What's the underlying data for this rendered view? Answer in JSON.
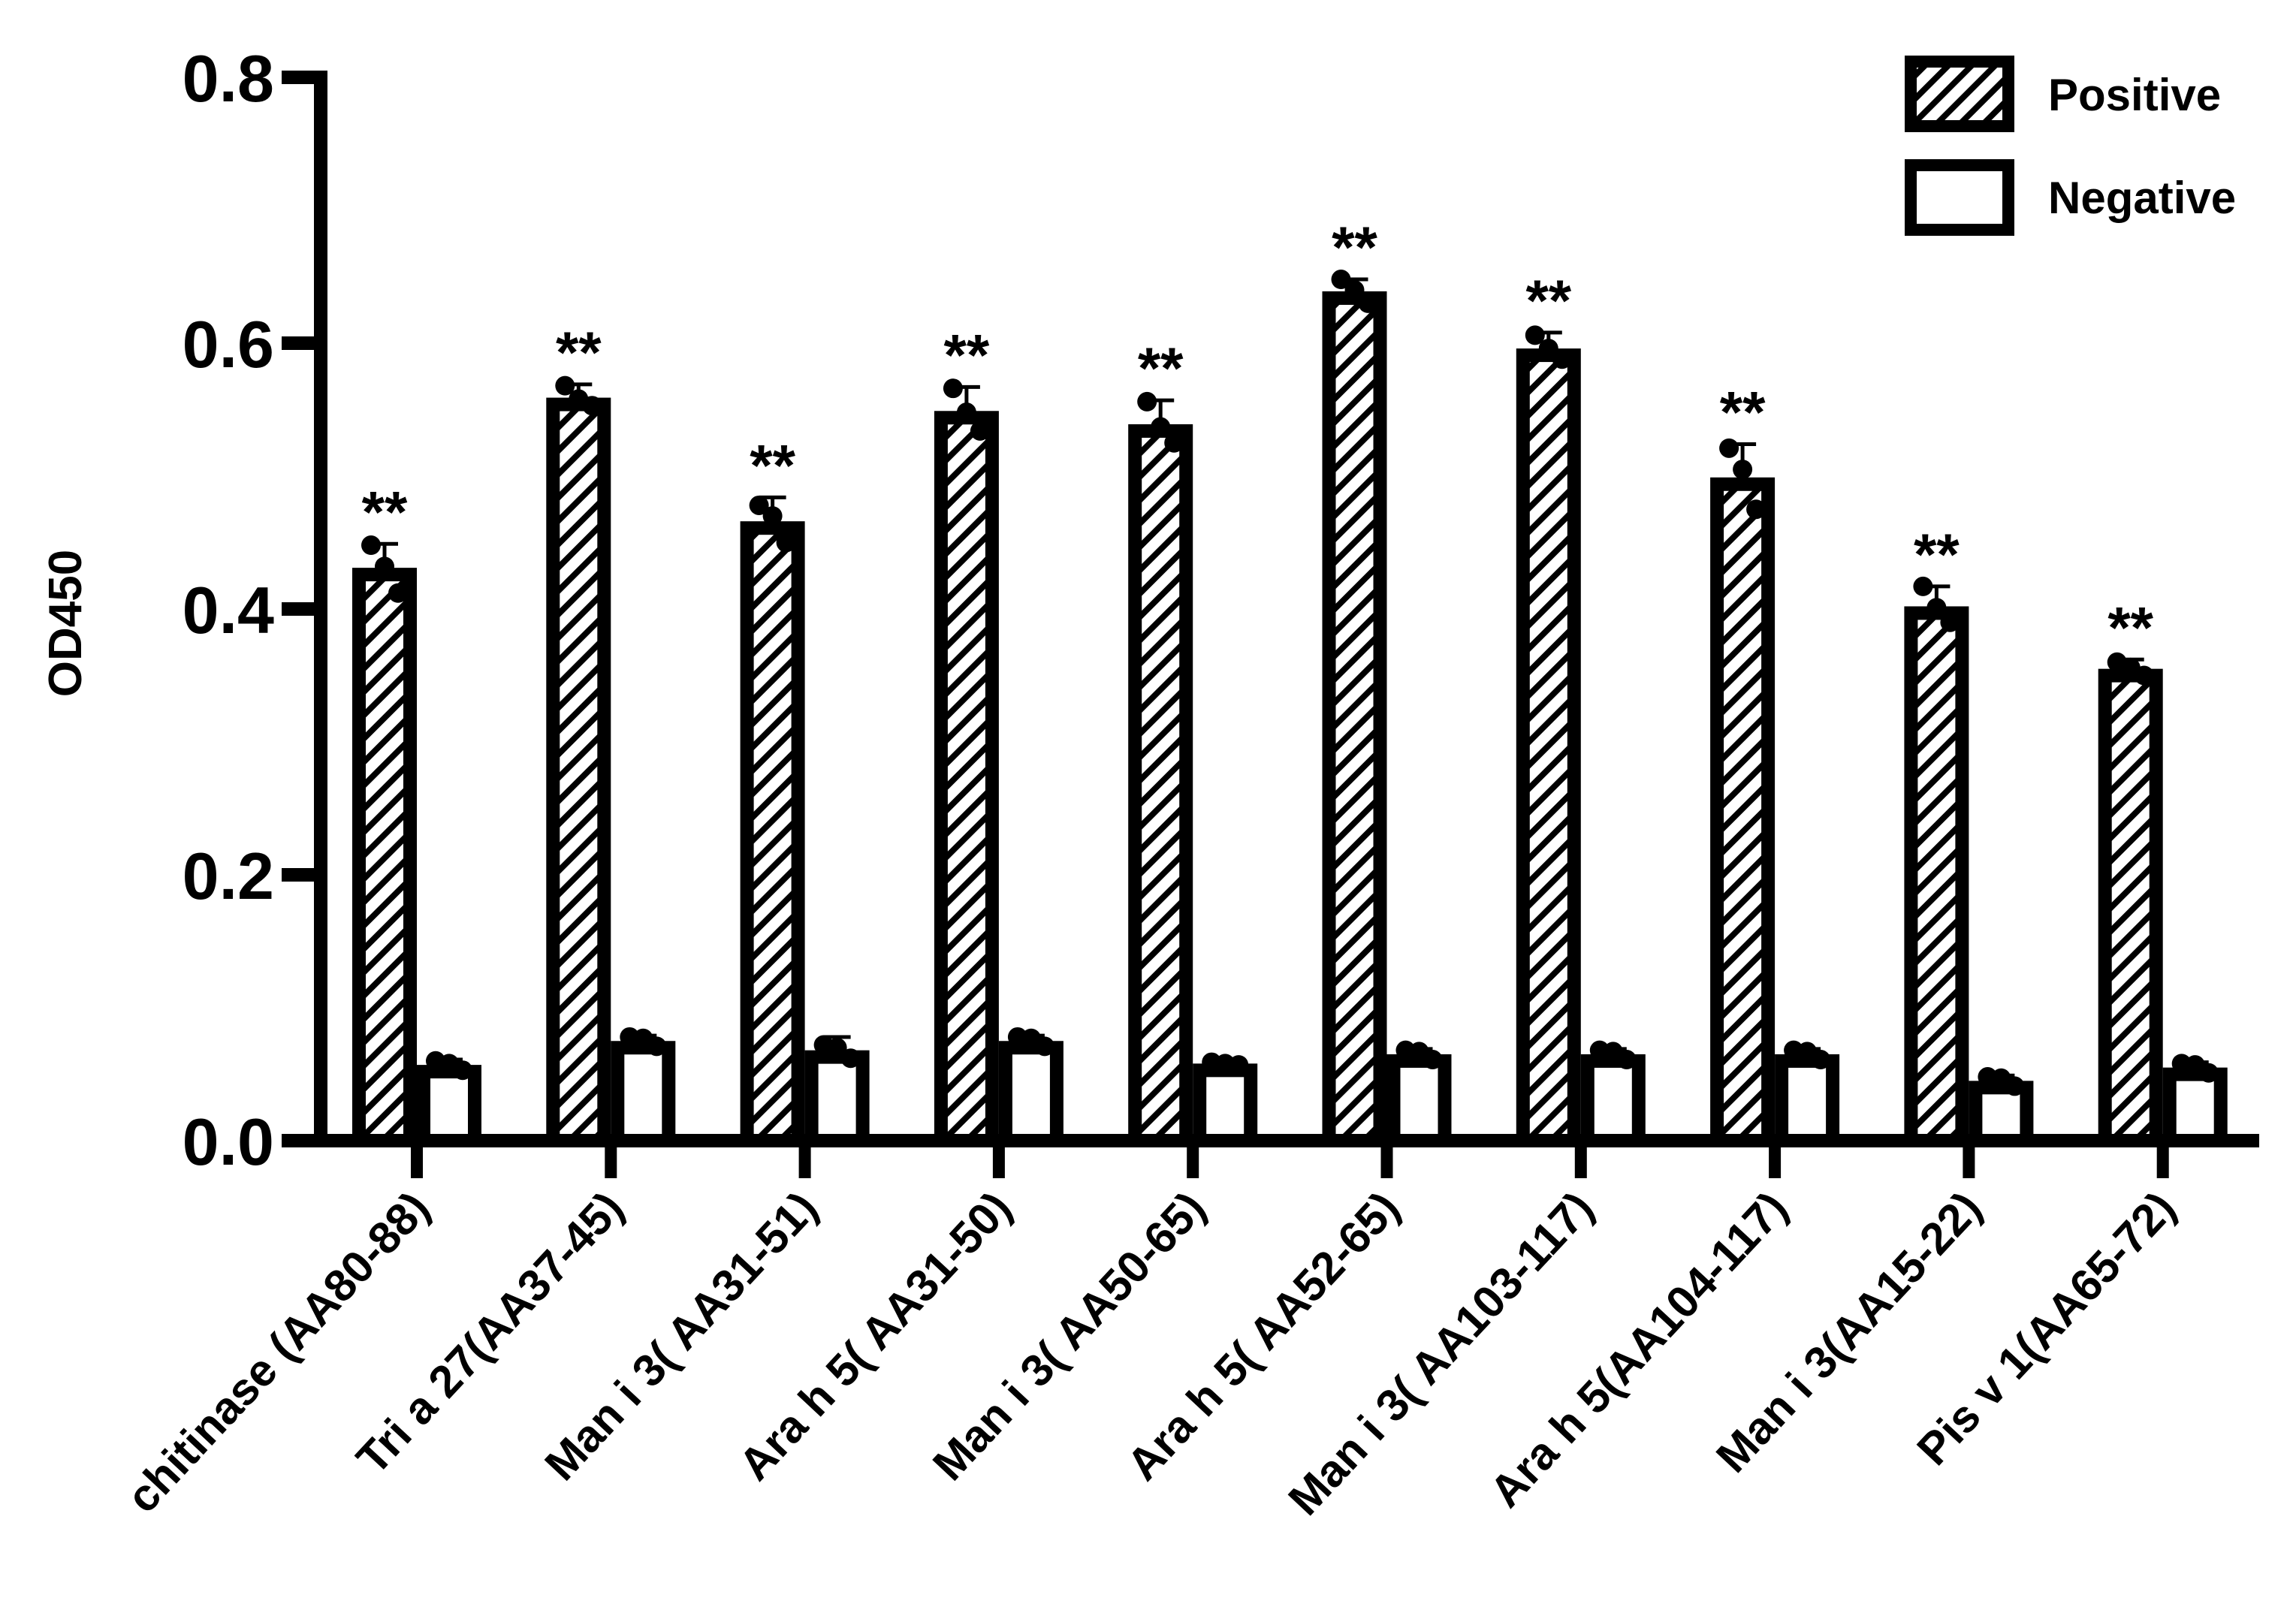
{
  "chart_data": {
    "type": "bar",
    "title": "",
    "xlabel": "",
    "ylabel": "OD450",
    "ylim": [
      0,
      0.8
    ],
    "yticks": [
      0.0,
      0.2,
      0.4,
      0.6,
      0.8
    ],
    "ytick_labels": [
      "0.0",
      "0.2",
      "0.4",
      "0.6",
      "0.8"
    ],
    "grid": false,
    "legend_position": "top-right",
    "categories": [
      "chitinase (AA80-88)",
      "Tri a 27(AA37-45)",
      "Man i 3( AA31-51)",
      "Ara h 5( AA31-50)",
      "Man i 3( AA50-65)",
      "Ara h 5( AA52-65)",
      "Man i 3( AA103-117)",
      "Ara h 5(AA104-117)",
      "Man i 3(AA15-22)",
      "Pis v 1(AA65-72)"
    ],
    "series": [
      {
        "name": "Positive",
        "pattern": "hatched",
        "values": [
          0.431,
          0.559,
          0.466,
          0.549,
          0.539,
          0.639,
          0.596,
          0.499,
          0.402,
          0.355
        ],
        "error": [
          0.018,
          0.01,
          0.018,
          0.018,
          0.018,
          0.009,
          0.012,
          0.025,
          0.015,
          0.007
        ],
        "points": [
          [
            0.448,
            0.432,
            0.412
          ],
          [
            0.568,
            0.558,
            0.553
          ],
          [
            0.478,
            0.47,
            0.45
          ],
          [
            0.566,
            0.548,
            0.534
          ],
          [
            0.556,
            0.537,
            0.525
          ],
          [
            0.648,
            0.64,
            0.63
          ],
          [
            0.606,
            0.596,
            0.588
          ],
          [
            0.521,
            0.505,
            0.475
          ],
          [
            0.417,
            0.401,
            0.39
          ],
          [
            0.36,
            0.356,
            0.35
          ]
        ]
      },
      {
        "name": "Negative",
        "pattern": "empty",
        "values": [
          0.057,
          0.075,
          0.068,
          0.075,
          0.058,
          0.065,
          0.065,
          0.065,
          0.045,
          0.055
        ],
        "error": [
          0.004,
          0.004,
          0.01,
          0.004,
          0.002,
          0.004,
          0.004,
          0.004,
          0.004,
          0.004
        ],
        "points": [
          [
            0.06,
            0.058,
            0.053
          ],
          [
            0.078,
            0.077,
            0.071
          ],
          [
            0.072,
            0.07,
            0.062
          ],
          [
            0.078,
            0.077,
            0.071
          ],
          [
            0.059,
            0.058,
            0.057
          ],
          [
            0.068,
            0.067,
            0.061
          ],
          [
            0.068,
            0.067,
            0.061
          ],
          [
            0.068,
            0.067,
            0.061
          ],
          [
            0.048,
            0.047,
            0.041
          ],
          [
            0.058,
            0.057,
            0.051
          ]
        ]
      }
    ],
    "annotations": [
      "**",
      "**",
      "**",
      "**",
      "**",
      "**",
      "**",
      "**",
      "**",
      "**"
    ]
  },
  "legend": {
    "items": [
      {
        "label": "Positive",
        "pattern": "hatched"
      },
      {
        "label": "Negative",
        "pattern": "empty"
      }
    ]
  },
  "colors": {
    "ink": "#000000",
    "background": "#ffffff"
  }
}
